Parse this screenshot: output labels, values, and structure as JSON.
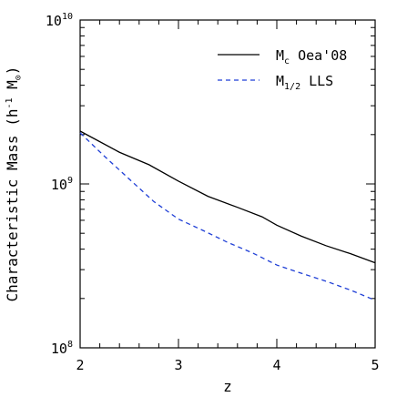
{
  "chart_data": {
    "type": "line",
    "title": "",
    "xlabel": "z",
    "ylabel": "Characteristic Mass (h^-1 M_sun)",
    "ylabel_parts": {
      "main": "Characteristic Mass (h",
      "sup": "-1",
      "mid": " M",
      "sub": "⊙",
      "close": ")"
    },
    "xlim": [
      2,
      5
    ],
    "ylim": [
      100000000,
      10000000000
    ],
    "yscale": "log",
    "x_ticks": [
      {
        "value": 2,
        "label": "2"
      },
      {
        "value": 3,
        "label": "3"
      },
      {
        "value": 4,
        "label": "4"
      },
      {
        "value": 5,
        "label": "5"
      }
    ],
    "y_ticks": [
      {
        "value": 100000000,
        "base": "10",
        "exp": "8"
      },
      {
        "value": 1000000000,
        "base": "10",
        "exp": "9"
      },
      {
        "value": 10000000000,
        "base": "10",
        "exp": "10"
      }
    ],
    "legend_position": "top-right",
    "series": [
      {
        "name": "M_c Oea'08",
        "legend": {
          "main": "M",
          "sub": "c",
          "rest": " Oea'08"
        },
        "color": "#000000",
        "dash": "solid",
        "x": [
          2.0,
          2.4,
          2.7,
          3.0,
          3.3,
          3.6,
          3.85,
          4.0,
          4.25,
          4.5,
          4.75,
          5.0
        ],
        "y": [
          2100000000,
          1560000000,
          1310000000,
          1040000000,
          840000000,
          720000000,
          630000000,
          560000000,
          480000000,
          420000000,
          375000000,
          330000000
        ]
      },
      {
        "name": "M_1/2 LLS",
        "legend": {
          "main": "M",
          "sub": "1/2",
          "rest": " LLS"
        },
        "color": "#1f3fd6",
        "dash": "dashed",
        "x": [
          2.0,
          2.25,
          2.5,
          2.75,
          3.0,
          3.25,
          3.5,
          3.75,
          4.0,
          4.25,
          4.5,
          4.75,
          5.0
        ],
        "y": [
          2050000000,
          1470000000,
          1070000000,
          780000000,
          610000000,
          520000000,
          440000000,
          380000000,
          320000000,
          285000000,
          255000000,
          225000000,
          195000000
        ]
      }
    ]
  }
}
